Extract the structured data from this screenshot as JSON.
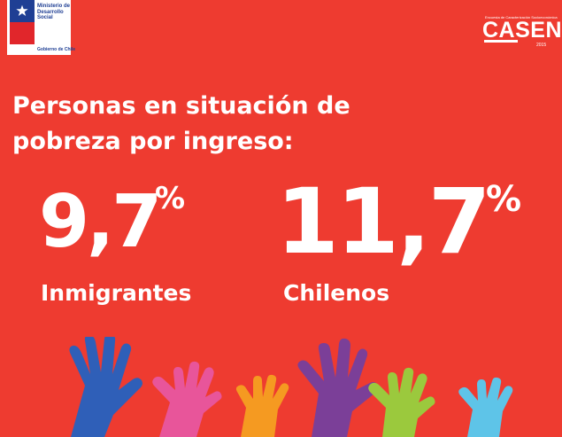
{
  "logos": {
    "gov_title": "Ministerio de Desarrollo Social",
    "gov_subtitle": "Gobierno de Chile",
    "casen_caption": "Encuesta de Caracterización Socioeconómica",
    "casen_name": "CASEN",
    "casen_year": "2015"
  },
  "headline": {
    "line1": "Personas en situación de",
    "line2": "pobreza por ingreso:"
  },
  "stats": [
    {
      "value": "9,7",
      "unit": "%",
      "label": "Inmigrantes"
    },
    {
      "value": "11,7",
      "unit": "%",
      "label": "Chilenos"
    }
  ],
  "colors": {
    "background": "#ee3b30",
    "text": "#ffffff",
    "gov_blue": "#1f3f94",
    "hands": [
      "#2f5fb8",
      "#e8559a",
      "#f59a21",
      "#7b3f98",
      "#9bc93d",
      "#5ec4e8"
    ]
  },
  "icons": [
    "chile-flag-star-icon",
    "raised-hands-illustration"
  ]
}
